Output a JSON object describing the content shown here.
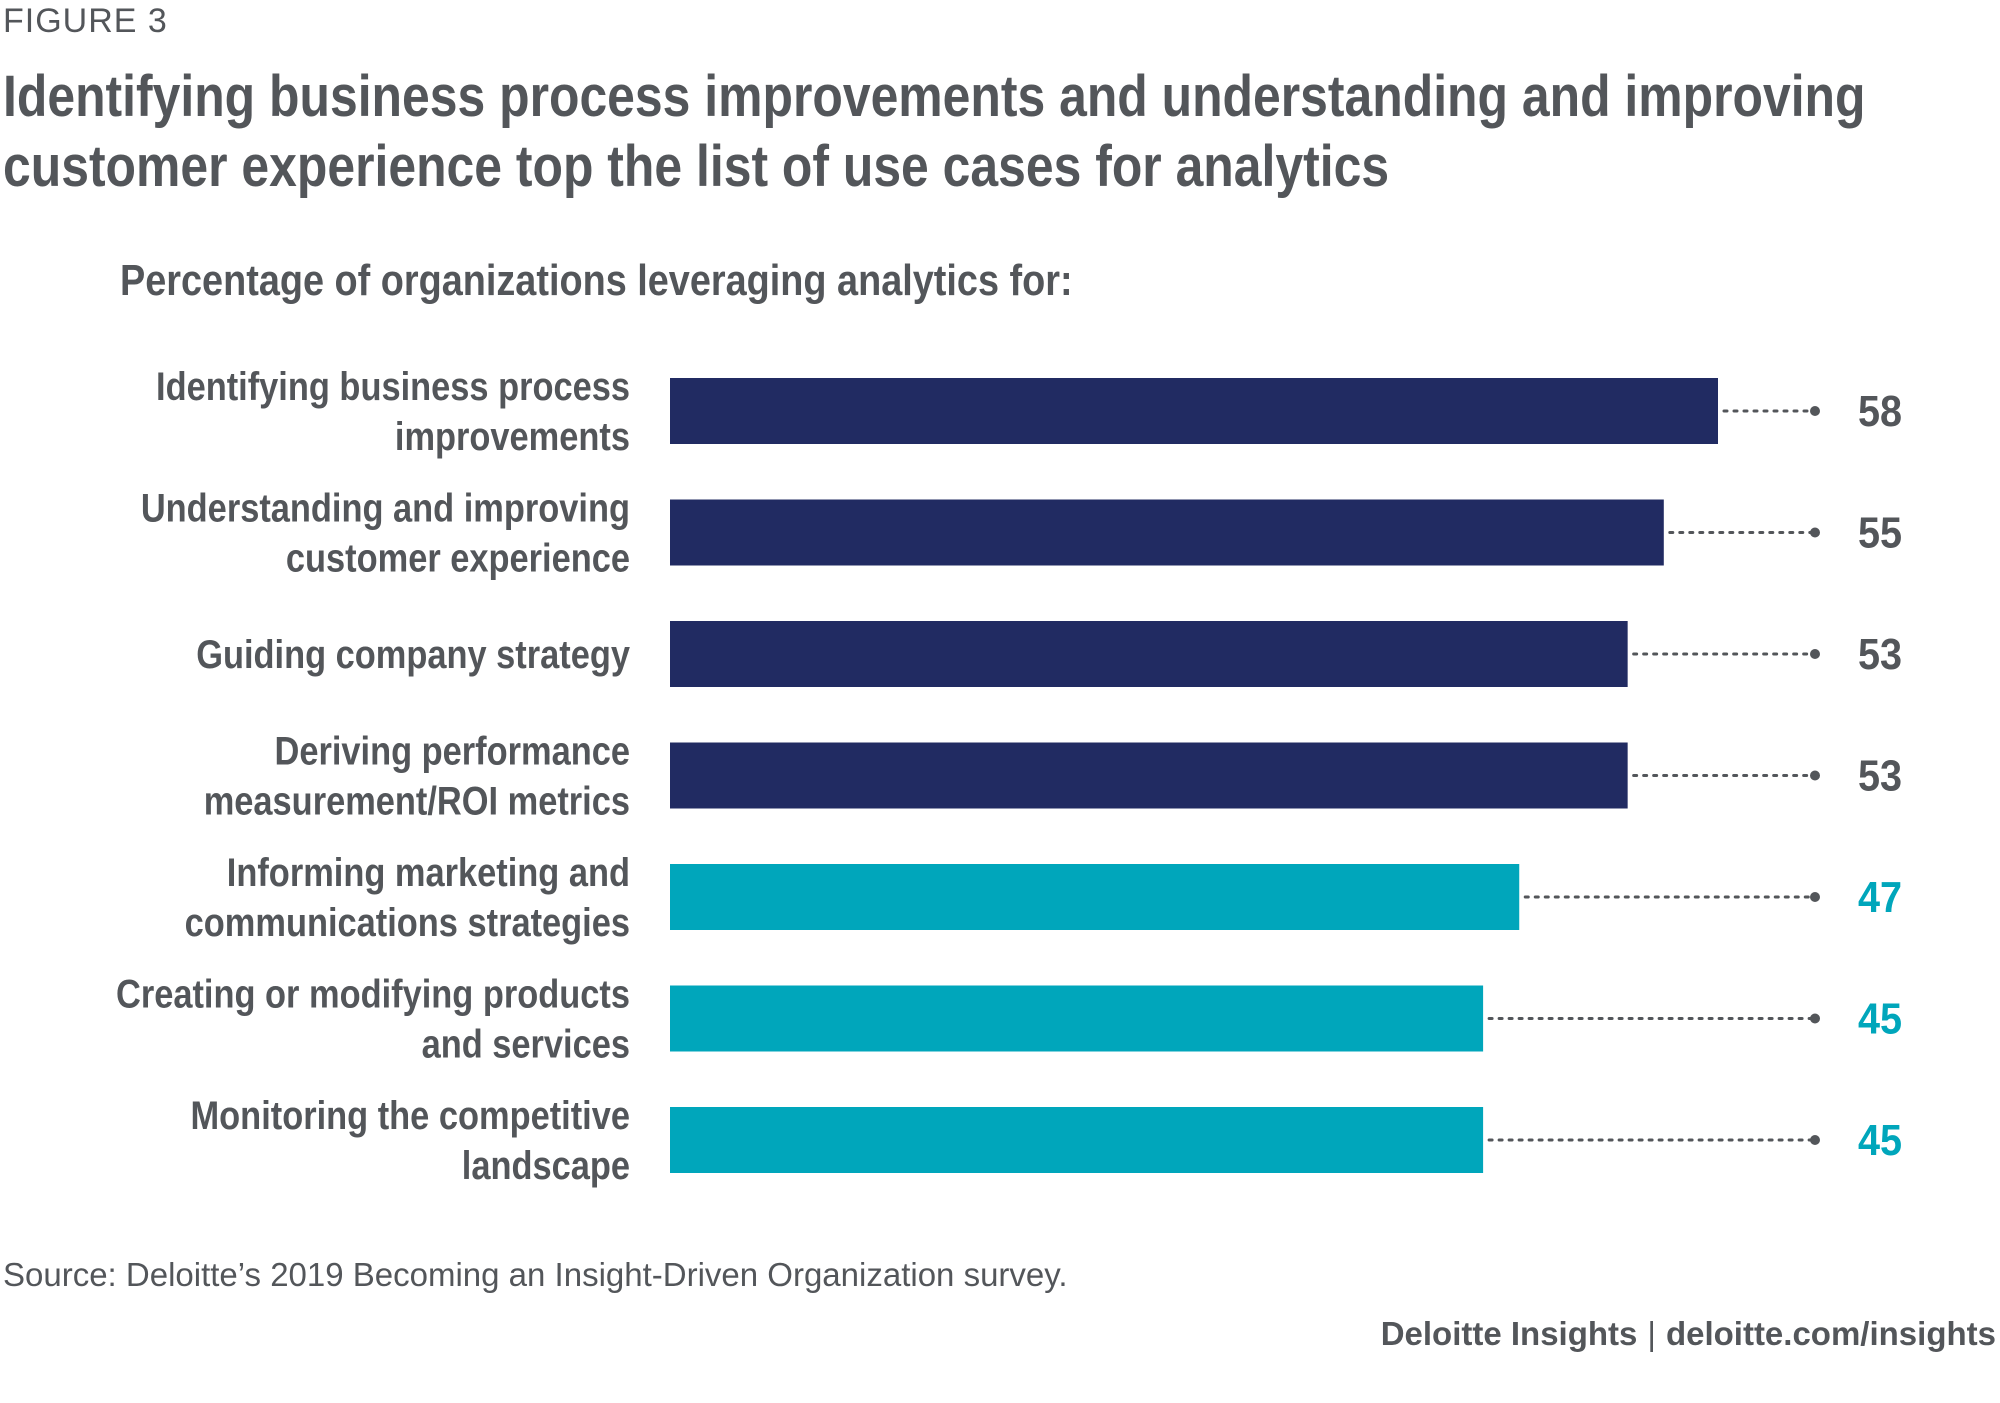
{
  "figure_label": "FIGURE 3",
  "headline": "Identifying business process improvements and understanding and improving customer experience top the list of use cases for analytics",
  "source": "Source: Deloitte’s 2019 Becoming an Insight-Driven Organization survey.",
  "footer": {
    "brand": "Deloitte Insights",
    "separator": "|",
    "url": "deloitte.com/insights"
  },
  "colors": {
    "text": "#53565a",
    "dark_bar": "#212b62",
    "teal_bar": "#00a6bb",
    "dot_line": "#53565a"
  },
  "chart_data": {
    "type": "bar",
    "orientation": "horizontal",
    "title": "Percentage of organizations leveraging analytics for:",
    "xlim": [
      0,
      58
    ],
    "grid": false,
    "legend": "none",
    "categories": [
      [
        "Identifying business process",
        "improvements"
      ],
      [
        "Understanding and improving",
        "customer experience"
      ],
      [
        "Guiding company strategy"
      ],
      [
        "Deriving performance",
        "measurement/ROI metrics"
      ],
      [
        "Informing marketing and",
        "communications strategies"
      ],
      [
        "Creating or modifying products",
        "and services"
      ],
      [
        "Monitoring the competitive",
        "landscape"
      ]
    ],
    "values": [
      58,
      55,
      53,
      53,
      47,
      45,
      45
    ],
    "bar_colors": [
      "#212b62",
      "#212b62",
      "#212b62",
      "#212b62",
      "#00a6bb",
      "#00a6bb",
      "#00a6bb"
    ],
    "value_label_colors": [
      "#53565a",
      "#53565a",
      "#53565a",
      "#53565a",
      "#00a6bb",
      "#00a6bb",
      "#00a6bb"
    ]
  }
}
